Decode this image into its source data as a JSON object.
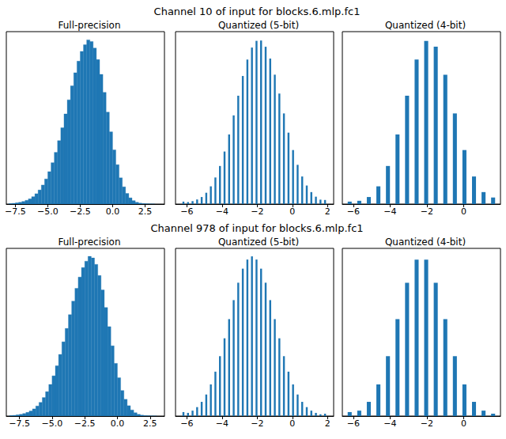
{
  "chart_data": [
    {
      "type": "histogram",
      "title": "Full-precision",
      "annotations": [
        "Channel 10 of input for blocks.6.mlp.fc1"
      ],
      "bins": [
        -8.0,
        -7.75,
        -7.5,
        -7.25,
        -7.0,
        -6.75,
        -6.5,
        -6.25,
        -6.0,
        -5.75,
        -5.5,
        -5.25,
        -5.0,
        -4.75,
        -4.5,
        -4.25,
        -4.0,
        -3.75,
        -3.5,
        -3.25,
        -3.0,
        -2.75,
        -2.5,
        -2.25,
        -2.0,
        -1.75,
        -1.5,
        -1.25,
        -1.0,
        -0.75,
        -0.5,
        -0.25,
        0.0,
        0.25,
        0.5,
        0.75,
        1.0,
        1.25,
        1.5,
        1.75,
        2.0,
        2.25,
        2.5,
        2.75,
        3.0,
        3.25
      ],
      "counts": [
        0.3,
        0.5,
        0.8,
        1.1,
        1.6,
        2.3,
        3.2,
        4.5,
        6.3,
        8.6,
        11.6,
        15.3,
        19.8,
        25.2,
        31.5,
        38.6,
        46.5,
        54.9,
        63.5,
        72,
        80,
        87,
        93,
        97,
        100,
        99,
        95,
        88,
        79,
        68,
        56,
        44,
        33,
        24,
        16,
        10.5,
        6.5,
        3.8,
        2.1,
        1.1,
        0.6,
        0.3,
        0.15,
        0.08,
        0.04
      ],
      "color": "#1f77b4",
      "xlim": [
        -8.2,
        4.0
      ],
      "xticks": [
        {
          "value": -7.5,
          "label": "−7.5"
        },
        {
          "value": -5,
          "label": "−5.0"
        },
        {
          "value": -2.5,
          "label": "−2.5"
        },
        {
          "value": 0,
          "label": "0.0"
        },
        {
          "value": 2.5,
          "label": "2.5"
        }
      ],
      "ylim": [
        0,
        105
      ],
      "tick_labels": "x"
    },
    {
      "type": "bar",
      "title": "Quantized (5-bit)",
      "x": [
        -6.2,
        -5.94,
        -5.68,
        -5.42,
        -5.16,
        -4.9,
        -4.64,
        -4.38,
        -4.12,
        -3.86,
        -3.6,
        -3.34,
        -3.08,
        -2.82,
        -2.56,
        -2.3,
        -2.04,
        -1.78,
        -1.52,
        -1.26,
        -1.0,
        -0.74,
        -0.48,
        -0.22,
        0.04,
        0.3,
        0.56,
        0.82,
        1.08,
        1.34,
        1.6,
        1.86
      ],
      "values": [
        1.5,
        1.2,
        1.8,
        2.8,
        4.3,
        6.9,
        10.8,
        16.2,
        23.2,
        32,
        42.4,
        54,
        66,
        78,
        88,
        95.3,
        99.4,
        99.6,
        95.8,
        88.6,
        78.8,
        67.3,
        55.2,
        43.5,
        32.9,
        23.9,
        16.8,
        11.3,
        7.3,
        4.5,
        2.7,
        2.5
      ],
      "color": "#1f77b4",
      "xlim": [
        -6.65,
        2.35
      ],
      "xticks": [
        {
          "value": -6,
          "label": "−6"
        },
        {
          "value": -4,
          "label": "−4"
        },
        {
          "value": -2,
          "label": "−2"
        },
        0,
        2
      ],
      "ylim": [
        0,
        105
      ],
      "tick_labels": "x"
    },
    {
      "type": "bar",
      "title": "Quantized (4-bit)",
      "x": [
        -6.2,
        -5.68,
        -5.16,
        -4.64,
        -4.12,
        -3.6,
        -3.08,
        -2.56,
        -2.04,
        -1.52,
        -1.0,
        -0.48,
        0.04,
        0.56,
        1.08,
        1.6
      ],
      "values": [
        1.5,
        2,
        4.3,
        10.8,
        23.2,
        42.4,
        66,
        88,
        99.4,
        95.8,
        78.8,
        55.2,
        32.9,
        16.8,
        7.3,
        4
      ],
      "color": "#1f77b4",
      "xlim": [
        -6.6,
        2.0
      ],
      "xticks": [
        {
          "value": -6,
          "label": "−6"
        },
        {
          "value": -4,
          "label": "−4"
        },
        {
          "value": -2,
          "label": "−2"
        },
        0
      ],
      "ylim": [
        0,
        105
      ],
      "tick_labels": "x"
    },
    {
      "type": "histogram",
      "title": "Full-precision",
      "annotations": [
        "Channel 978 of input for blocks.6.mlp.fc1"
      ],
      "bins": [
        -8.25,
        -8.0,
        -7.75,
        -7.5,
        -7.25,
        -7.0,
        -6.75,
        -6.5,
        -6.25,
        -6.0,
        -5.75,
        -5.5,
        -5.25,
        -5.0,
        -4.75,
        -4.5,
        -4.25,
        -4.0,
        -3.75,
        -3.5,
        -3.25,
        -3.0,
        -2.75,
        -2.5,
        -2.25,
        -2.0,
        -1.75,
        -1.5,
        -1.25,
        -1.0,
        -0.75,
        -0.5,
        -0.25,
        0.0,
        0.25,
        0.5,
        0.75,
        1.0,
        1.25,
        1.5,
        1.75,
        2.0,
        2.25,
        2.5,
        2.75,
        3.0
      ],
      "counts": [
        0.3,
        0.5,
        0.8,
        1.1,
        1.6,
        2.3,
        3.2,
        4.5,
        6.3,
        8.6,
        11.6,
        15.3,
        19.8,
        25.2,
        31.5,
        38.6,
        46.5,
        54.9,
        63.5,
        72,
        80,
        87,
        93,
        97,
        100,
        99,
        95,
        88,
        79,
        68,
        56,
        44,
        33,
        24,
        16,
        10.5,
        6.5,
        3.8,
        2.1,
        1.1,
        0.6,
        0.3,
        0.15,
        0.08,
        0.04
      ],
      "color": "#1f77b4",
      "xlim": [
        -8.5,
        3.6
      ],
      "xticks": [
        {
          "value": -7.5,
          "label": "−7.5"
        },
        {
          "value": -5,
          "label": "−5.0"
        },
        {
          "value": -2.5,
          "label": "−2.5"
        },
        {
          "value": 0,
          "label": "0.0"
        },
        {
          "value": 2.5,
          "label": "2.5"
        }
      ],
      "ylim": [
        0,
        105
      ],
      "tick_labels": "x"
    },
    {
      "type": "bar",
      "title": "Quantized (5-bit)",
      "x": [
        -6.2,
        -5.94,
        -5.68,
        -5.42,
        -5.16,
        -4.9,
        -4.64,
        -4.38,
        -4.12,
        -3.86,
        -3.6,
        -3.34,
        -3.08,
        -2.82,
        -2.56,
        -2.3,
        -2.04,
        -1.78,
        -1.52,
        -1.26,
        -1.0,
        -0.74,
        -0.48,
        -0.22,
        0.04,
        0.3,
        0.56,
        0.82,
        1.08,
        1.34,
        1.6,
        1.86
      ],
      "values": [
        2.5,
        2.0,
        3.4,
        5.6,
        8.9,
        13.5,
        19.8,
        27.8,
        37.5,
        48.7,
        60.7,
        72.6,
        83.5,
        92.3,
        98,
        100,
        98,
        92.3,
        83.5,
        72.6,
        60.7,
        48.7,
        37.5,
        27.8,
        19.8,
        13.5,
        8.9,
        5.6,
        3.4,
        2.0,
        1.1,
        1.5
      ],
      "color": "#1f77b4",
      "xlim": [
        -6.65,
        2.35
      ],
      "xticks": [
        {
          "value": -6,
          "label": "−6"
        },
        {
          "value": -4,
          "label": "−4"
        },
        {
          "value": -2,
          "label": "−2"
        },
        0,
        2
      ],
      "ylim": [
        0,
        105
      ],
      "tick_labels": "x"
    },
    {
      "type": "bar",
      "title": "Quantized (4-bit)",
      "x": [
        -6.2,
        -5.68,
        -5.16,
        -4.64,
        -4.12,
        -3.6,
        -3.08,
        -2.56,
        -2.04,
        -1.52,
        -1.0,
        -0.48,
        0.04,
        0.56,
        1.08,
        1.6
      ],
      "values": [
        2.5,
        3.4,
        8.9,
        19.8,
        37.5,
        60.7,
        83.5,
        98,
        98,
        83.5,
        60.7,
        37.5,
        19.8,
        8.9,
        3.4,
        1.5
      ],
      "color": "#1f77b4",
      "xlim": [
        -6.6,
        2.0
      ],
      "xticks": [
        {
          "value": -6,
          "label": "−6"
        },
        {
          "value": -4,
          "label": "−4"
        },
        {
          "value": -2,
          "label": "−2"
        },
        0
      ],
      "ylim": [
        0,
        105
      ],
      "tick_labels": "x"
    }
  ]
}
